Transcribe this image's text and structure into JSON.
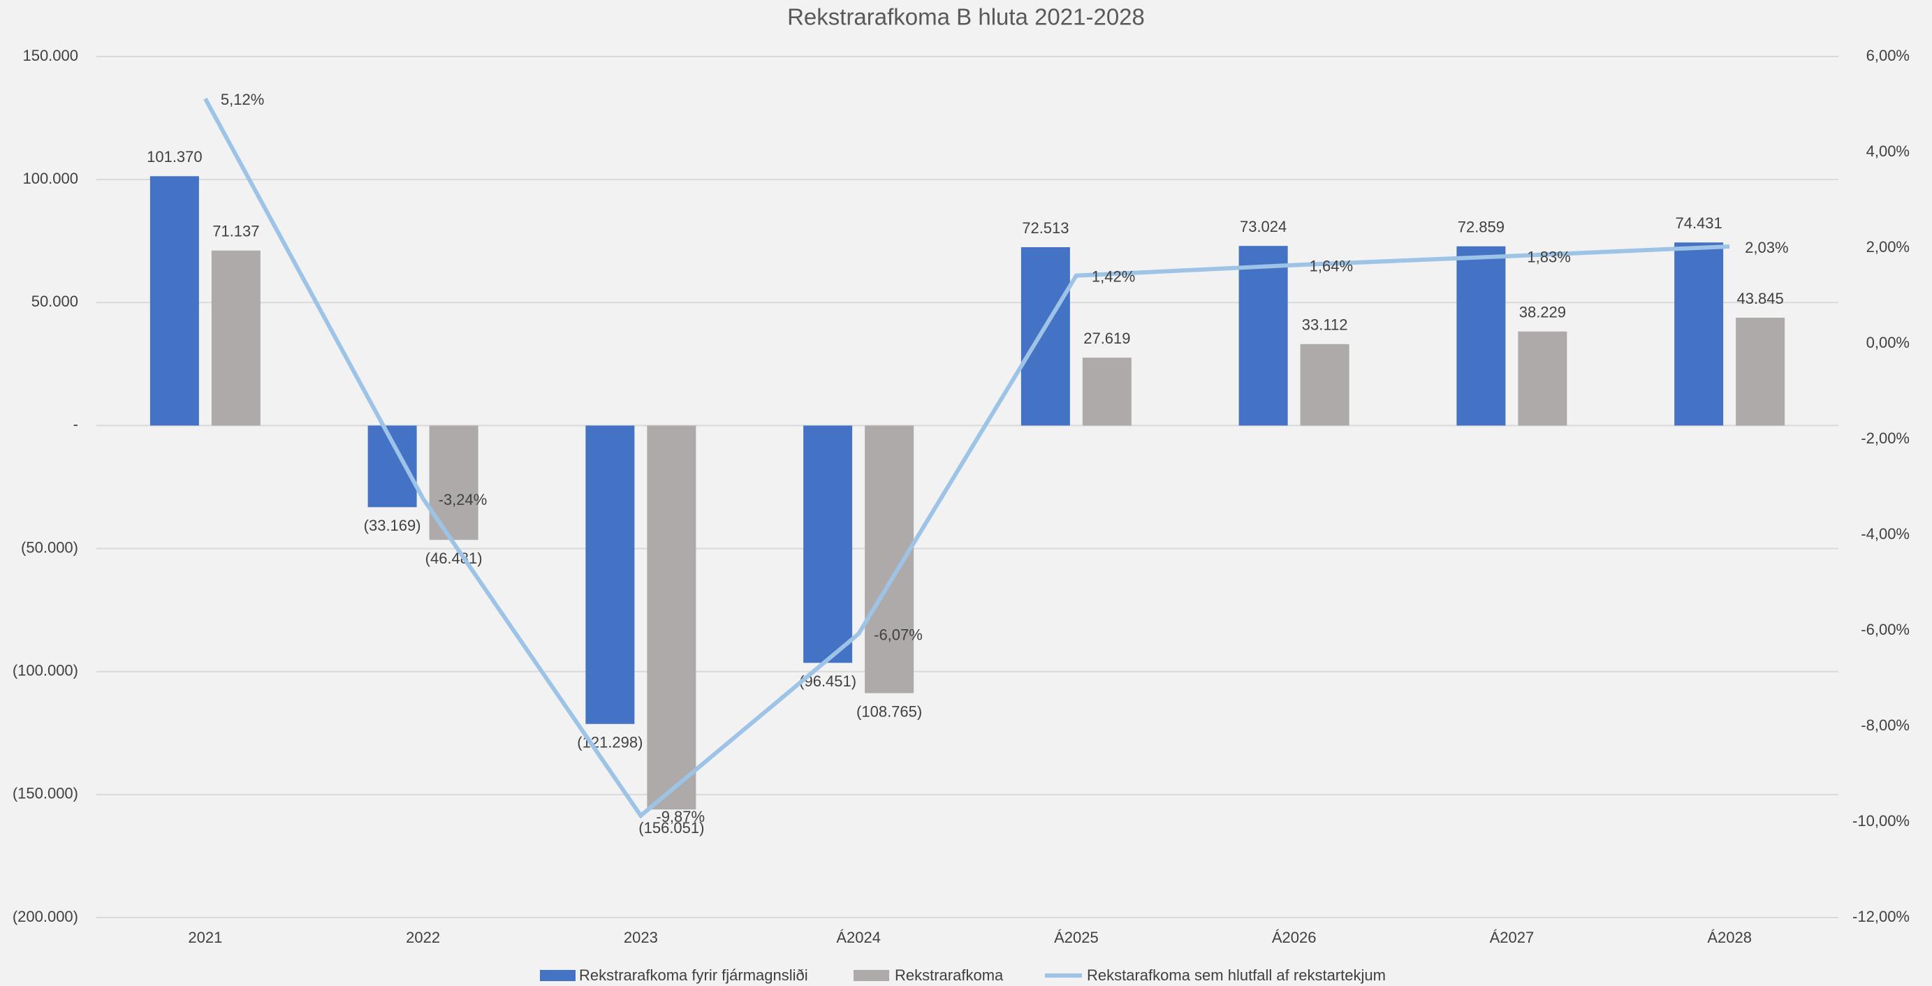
{
  "chart_data": {
    "type": "bar",
    "title": "Rekstrarafkoma B hluta 2021-2028",
    "categories": [
      "2021",
      "2022",
      "2023",
      "Á2024",
      "Á2025",
      "Á2026",
      "Á2027",
      "Á2028"
    ],
    "series": [
      {
        "name": "Rekstrarafkoma fyrir fjármagnsliði",
        "color": "#4472c4",
        "type": "bar",
        "values": [
          101370,
          -33169,
          -121298,
          -96451,
          72513,
          73024,
          72859,
          74431
        ],
        "value_labels": [
          "101.370",
          "(33.169)",
          "(121.298)",
          "(96.451)",
          "72.513",
          "73.024",
          "72.859",
          "74.431"
        ]
      },
      {
        "name": "Rekstrarafkoma",
        "color": "#aeaaaa",
        "type": "bar",
        "values": [
          71137,
          -46481,
          -156051,
          -108765,
          27619,
          33112,
          38229,
          43845
        ],
        "value_labels": [
          "71.137",
          "(46.481)",
          "(156.051)",
          "(108.765)",
          "27.619",
          "33.112",
          "38.229",
          "43.845"
        ]
      },
      {
        "name": "Rekstarafkoma sem hlutfall af rekstartekjum",
        "color": "#9dc3e6",
        "type": "line",
        "axis": "y2",
        "values": [
          5.12,
          -3.24,
          -9.87,
          -6.07,
          1.42,
          1.64,
          1.83,
          2.03
        ],
        "value_labels": [
          "5,12%",
          "-3,24%",
          "-9,87%",
          "-6,07%",
          "1,42%",
          "1,64%",
          "1,83%",
          "2,03%"
        ]
      }
    ],
    "ylim": [
      -200000,
      150000
    ],
    "yticks": [
      {
        "value": -200000,
        "label": "(200.000)"
      },
      {
        "value": -150000,
        "label": "(150.000)"
      },
      {
        "value": -100000,
        "label": "(100.000)"
      },
      {
        "value": -50000,
        "label": "(50.000)"
      },
      {
        "value": 0,
        "label": "-"
      },
      {
        "value": 50000,
        "label": "50.000"
      },
      {
        "value": 100000,
        "label": "100.000"
      },
      {
        "value": 150000,
        "label": "150.000"
      }
    ],
    "y2lim": [
      -12,
      6
    ],
    "y2ticks": [
      {
        "value": -12,
        "label": "-12,00%"
      },
      {
        "value": -10,
        "label": "-10,00%"
      },
      {
        "value": -8,
        "label": "-8,00%"
      },
      {
        "value": -6,
        "label": "-6,00%"
      },
      {
        "value": -4,
        "label": "-4,00%"
      },
      {
        "value": -2,
        "label": "-2,00%"
      },
      {
        "value": 0,
        "label": "0,00%"
      },
      {
        "value": 2,
        "label": "2,00%"
      },
      {
        "value": 4,
        "label": "4,00%"
      },
      {
        "value": 6,
        "label": "6,00%"
      }
    ],
    "grid": true,
    "legend": "bottom"
  }
}
